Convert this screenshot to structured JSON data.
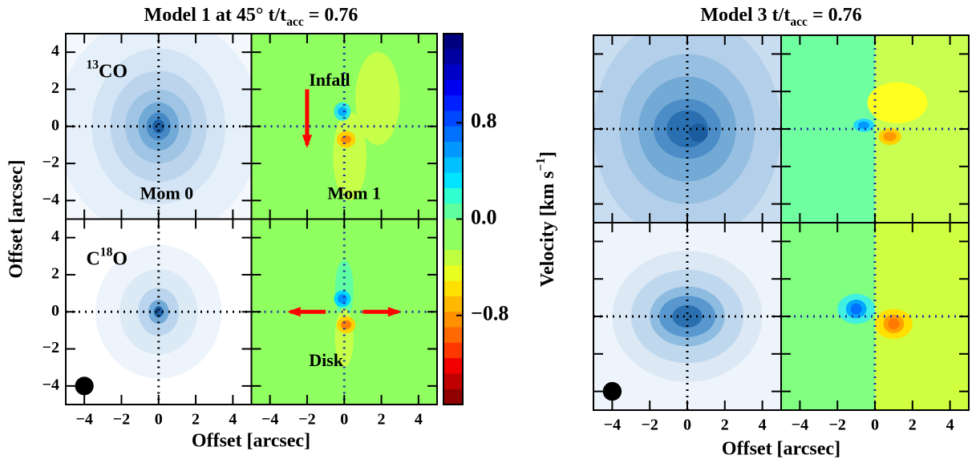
{
  "chart_data": [
    {
      "type": "contour",
      "title": {
        "text": "Model 1 at 45° t/t",
        "sub": "acc",
        "end": " = 0.76"
      },
      "xlabel": "Offset [arcsec]",
      "ylabel": "Offset [arcsec]",
      "xlim": [
        -5,
        5
      ],
      "ylim": [
        -5,
        5
      ],
      "xticks": [
        {
          "value": -4,
          "label": "−4"
        },
        {
          "value": -2,
          "label": "−2"
        },
        0,
        2,
        4
      ],
      "yticks": [
        {
          "value": -4,
          "label": "−4"
        },
        {
          "value": -2,
          "label": "−2"
        },
        0,
        2,
        4
      ],
      "labels": {
        "co13": {
          "sup": "13",
          "base": "CO"
        },
        "c18o": {
          "base": "C",
          "sup": "18",
          "end": "O"
        },
        "mom0": "Mom 0",
        "mom1": "Mom 1",
        "infall": "Infall",
        "disk": "Disk"
      },
      "colorbar": {
        "label": {
          "text": "Velocity [km s",
          "sup": "−1",
          "end": "]"
        },
        "clim": [
          -1.54,
          1.54
        ],
        "ticks": [
          0.8,
          {
            "value": 0,
            "label": "0.0"
          },
          {
            "value": -0.8,
            "label": "−0.8"
          }
        ],
        "colors": [
          "#00007f",
          "#0000a0",
          "#0000c8",
          "#0000f0",
          "#0020ff",
          "#0048ff",
          "#0070ff",
          "#0098ff",
          "#00c0ff",
          "#00e4ff",
          "#30ffd0",
          "#60ffa0",
          "#90ff60",
          "#90ff60",
          "#c0ff40",
          "#e8ff20",
          "#ffe000",
          "#ffb800",
          "#ff9000",
          "#ff6800",
          "#ff3800",
          "#f00000",
          "#c00000",
          "#8f0000"
        ]
      }
    },
    {
      "type": "contour",
      "title": {
        "text": "Model 3 t/t",
        "sub": "acc",
        "end": " = 0.76"
      },
      "xlabel": "Offset [arcsec]",
      "xlim": [
        -5,
        5
      ],
      "ylim": [
        -5,
        5
      ],
      "xticks": [
        {
          "value": -4,
          "label": "−4"
        },
        {
          "value": -2,
          "label": "−2"
        },
        0,
        2,
        4
      ],
      "yticks": [
        -4,
        -2,
        0,
        2,
        4
      ]
    }
  ]
}
